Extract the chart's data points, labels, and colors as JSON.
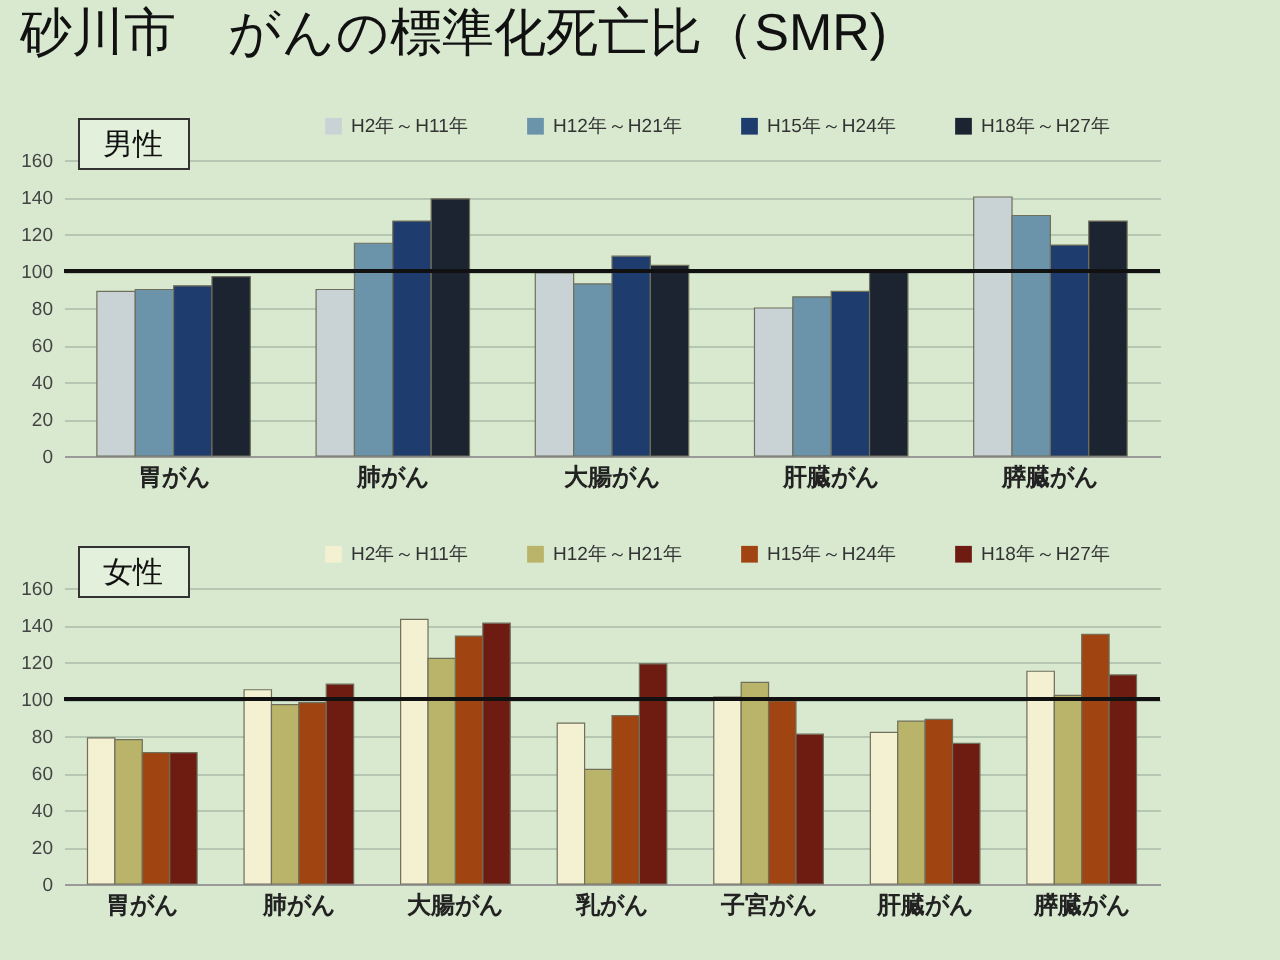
{
  "chart_data": [
    {
      "type": "bar",
      "title": "砂川市　がんの標準化死亡比（SMR)",
      "annotations": [
        "男性"
      ],
      "categories": [
        "胃がん",
        "肺がん",
        "大腸がん",
        "肝臓がん",
        "膵臓がん"
      ],
      "series": [
        {
          "name": "H2年～H11年",
          "color": "#c9d3d6",
          "values": [
            89,
            90,
            99,
            80,
            140
          ]
        },
        {
          "name": "H12年～H21年",
          "color": "#6b93aa",
          "values": [
            90,
            115,
            93,
            86,
            130
          ]
        },
        {
          "name": "H15年～H24年",
          "color": "#1f3c6e",
          "values": [
            92,
            127,
            108,
            89,
            114
          ]
        },
        {
          "name": "H18年～H27年",
          "color": "#1c2331",
          "values": [
            97,
            139,
            103,
            100,
            127
          ]
        }
      ],
      "ylim": [
        0,
        160
      ],
      "yticks": [
        0,
        20,
        40,
        60,
        80,
        100,
        120,
        140,
        160
      ],
      "grid": "y",
      "legend": "top",
      "ref_lines": [
        {
          "axis": "y",
          "value": 100
        }
      ]
    },
    {
      "type": "bar",
      "annotations": [
        "女性"
      ],
      "categories": [
        "胃がん",
        "肺がん",
        "大腸がん",
        "乳がん",
        "子宮がん",
        "肝臓がん",
        "膵臓がん"
      ],
      "series": [
        {
          "name": "H2年～H11年",
          "color": "#f3f1d2",
          "values": [
            79,
            105,
            143,
            87,
            101,
            82,
            115
          ]
        },
        {
          "name": "H12年～H21年",
          "color": "#b9b46a",
          "values": [
            78,
            97,
            122,
            62,
            109,
            88,
            102
          ]
        },
        {
          "name": "H15年～H24年",
          "color": "#a04512",
          "values": [
            71,
            98,
            134,
            91,
            99,
            89,
            135
          ]
        },
        {
          "name": "H18年～H27年",
          "color": "#6e1c12",
          "values": [
            71,
            108,
            141,
            119,
            81,
            76,
            113
          ]
        }
      ],
      "ylim": [
        0,
        160
      ],
      "yticks": [
        0,
        20,
        40,
        60,
        80,
        100,
        120,
        140,
        160
      ],
      "grid": "y",
      "legend": "top",
      "ref_lines": [
        {
          "axis": "y",
          "value": 100
        }
      ]
    }
  ]
}
